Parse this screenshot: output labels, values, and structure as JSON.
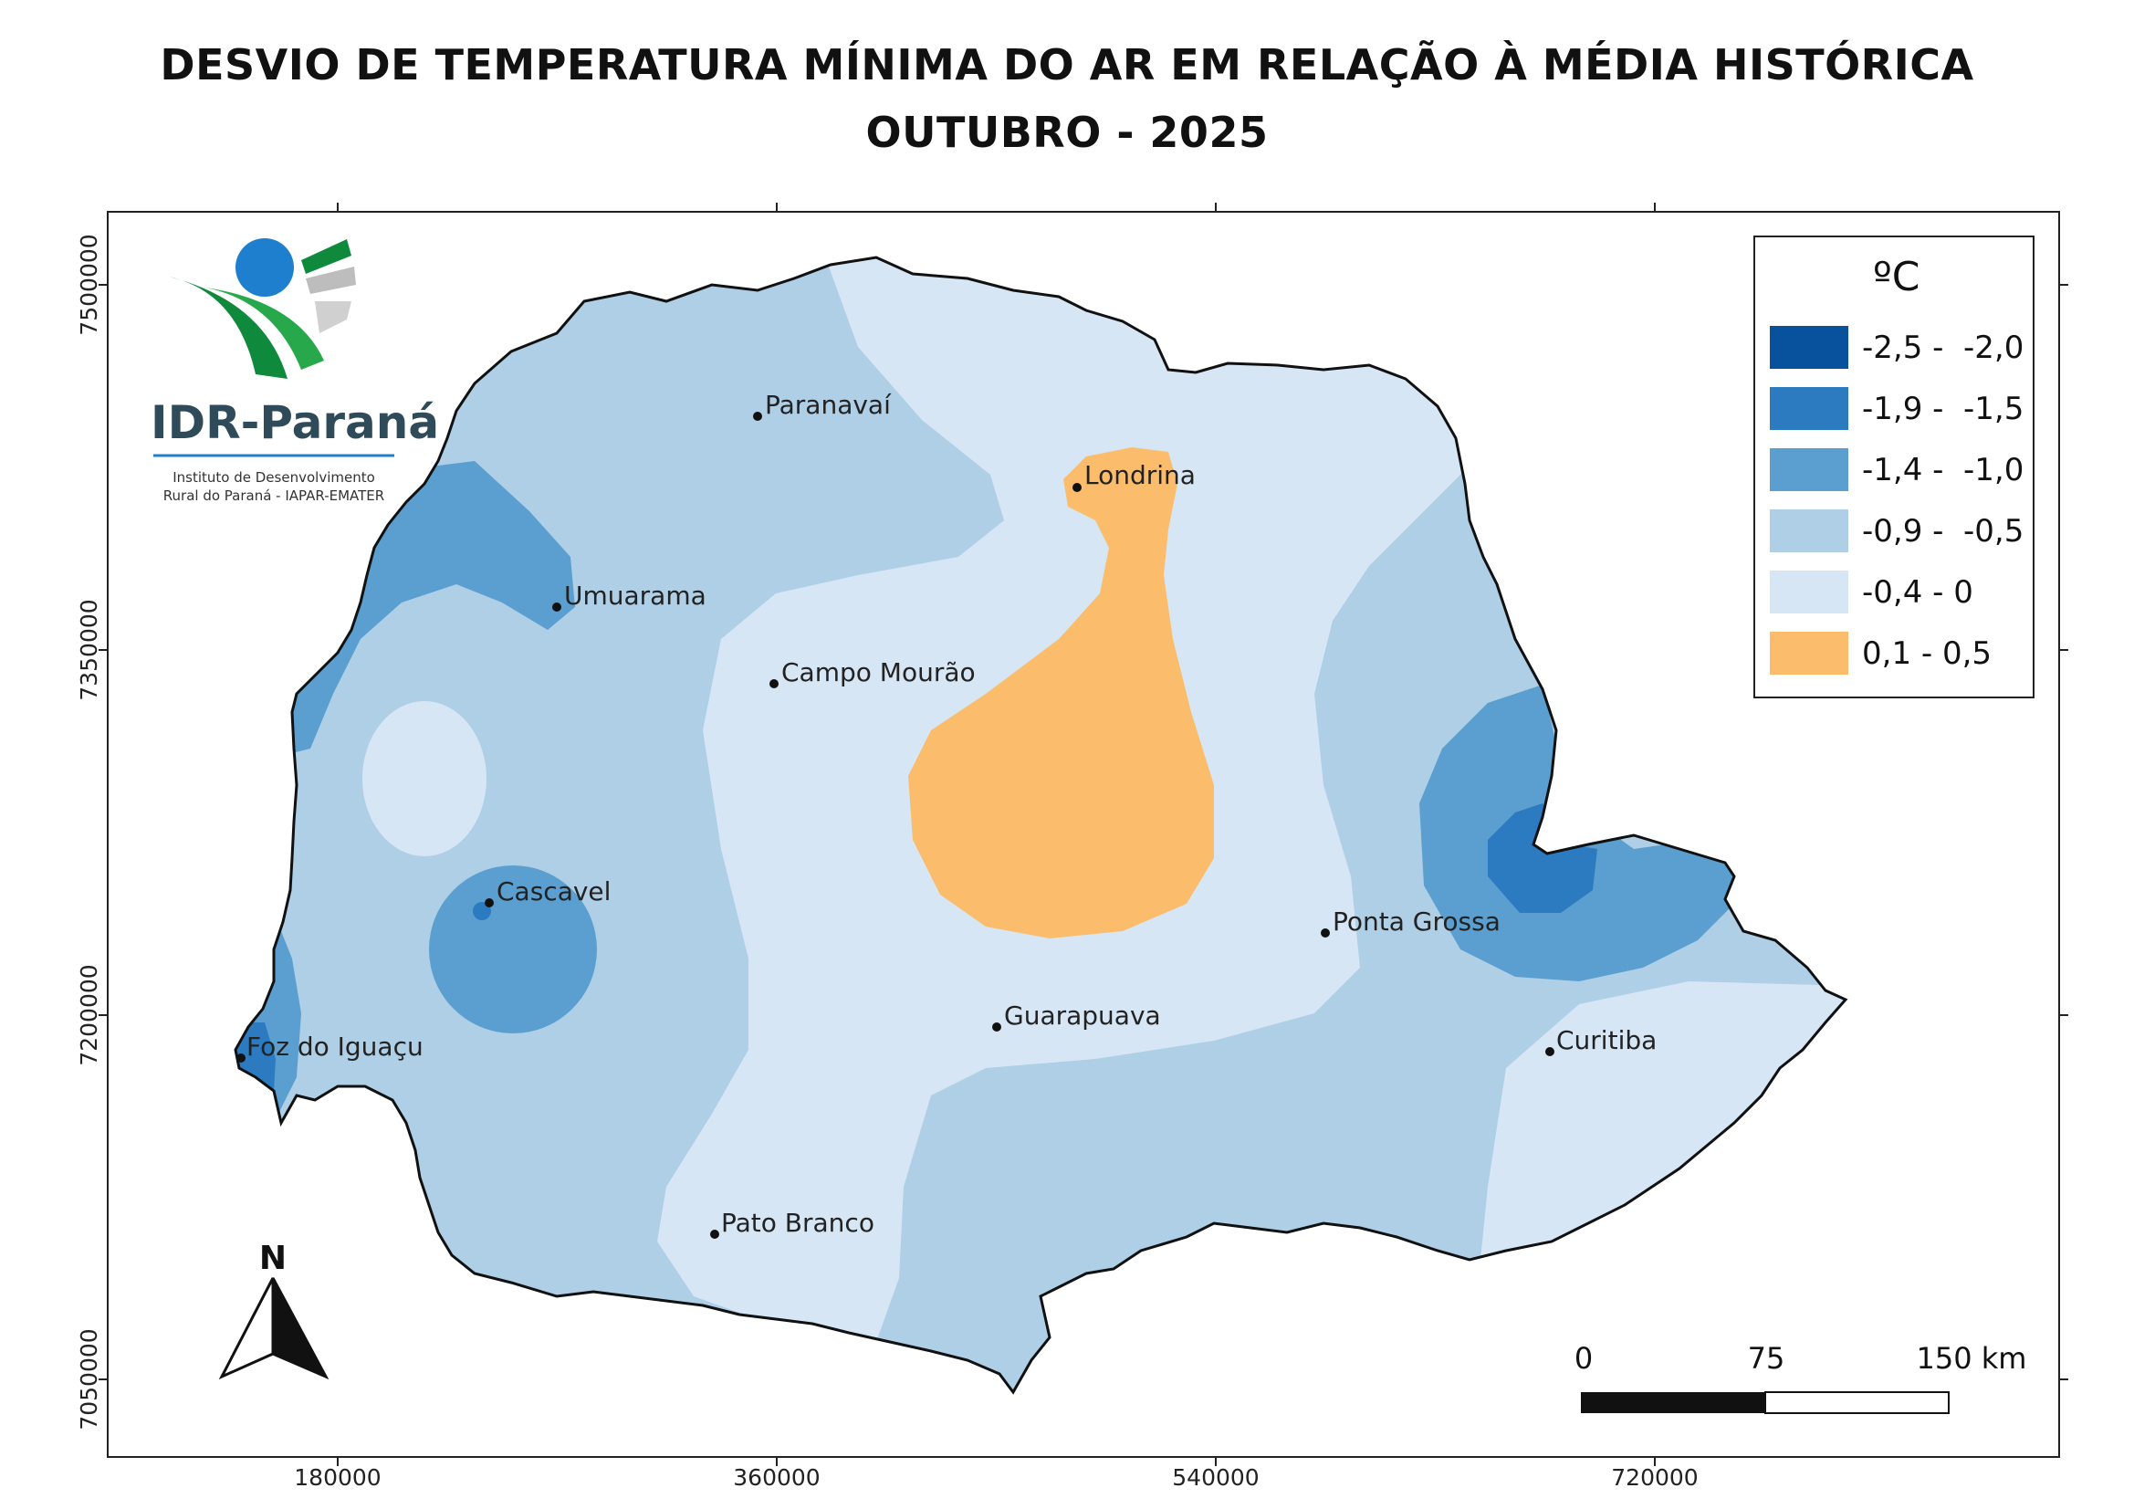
{
  "title_line1": "DESVIO DE TEMPERATURA MÍNIMA DO AR EM RELAÇÃO À MÉDIA HISTÓRICA",
  "title_line2": "OUTUBRO - 2025",
  "logo": {
    "name": "IDR-Paraná",
    "sub_line1": "Instituto de Desenvolvimento",
    "sub_line2": "Rural do Paraná - IAPAR-EMATER"
  },
  "legend": {
    "unit": "ºC",
    "classes": [
      {
        "label": "-2,5 -  -2,0",
        "color": "#08519c"
      },
      {
        "label": "-1,9 -  -1,5",
        "color": "#2c7bc0"
      },
      {
        "label": "-1,4 -  -1,0",
        "color": "#5a9fcf"
      },
      {
        "label": "-0,9 -  -0,5",
        "color": "#afcfe7"
      },
      {
        "label": "-0,4 - 0",
        "color": "#d6e6f5"
      },
      {
        "label": "0,1 - 0,5",
        "color": "#fbbd6b"
      }
    ]
  },
  "axes": {
    "x_ticks": [
      "180000",
      "360000",
      "540000",
      "720000"
    ],
    "y_ticks": [
      "7500000",
      "7350000",
      "7200000",
      "7050000"
    ]
  },
  "cities": [
    {
      "name": "Paranavaí"
    },
    {
      "name": "Londrina"
    },
    {
      "name": "Umuarama"
    },
    {
      "name": "Campo Mourão"
    },
    {
      "name": "Cascavel"
    },
    {
      "name": "Ponta Grossa"
    },
    {
      "name": "Guarapuava"
    },
    {
      "name": "Foz do Iguaçu"
    },
    {
      "name": "Curitiba"
    },
    {
      "name": "Pato Branco"
    }
  ],
  "north_label": "N",
  "scale": {
    "labels": [
      "0",
      "75",
      "150 km"
    ]
  }
}
